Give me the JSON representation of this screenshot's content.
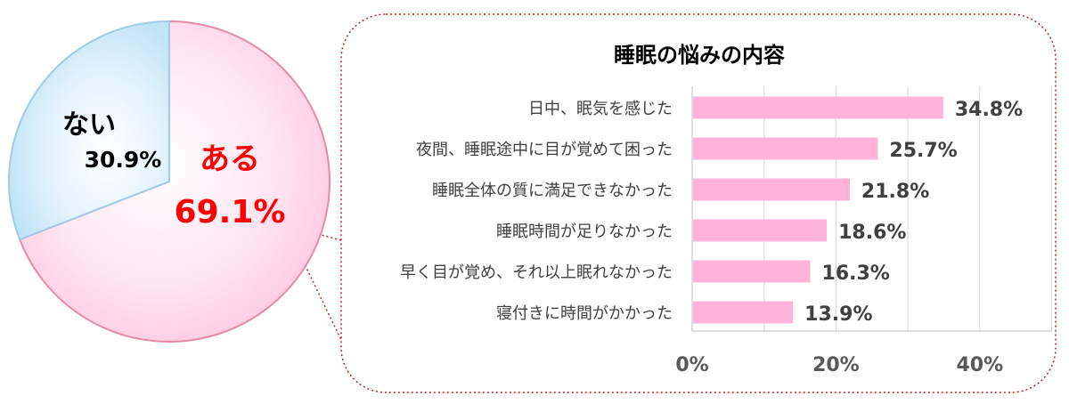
{
  "chart_data": [
    {
      "type": "pie",
      "slices": [
        {
          "label": "ある",
          "value": 69.1,
          "value_label": "69.1%",
          "color": "#ff6699",
          "label_color": "#ff0000"
        },
        {
          "label": "ない",
          "value": 30.9,
          "value_label": "30.9%",
          "color": "#99ccee",
          "label_color": "#000000"
        }
      ]
    },
    {
      "type": "bar",
      "orientation": "horizontal",
      "title": "睡眠の悩みの内容",
      "categories": [
        "日中、眠気を感じた",
        "夜間、睡眠途中に目が覚めて困った",
        "睡眠全体の質に満足できなかった",
        "睡眠時間が足りなかった",
        "早く目が覚め、それ以上眠れなかった",
        "寝付きに時間がかかった"
      ],
      "values": [
        34.8,
        25.7,
        21.8,
        18.6,
        16.3,
        13.9
      ],
      "value_labels": [
        "34.8%",
        "25.7%",
        "21.8%",
        "18.6%",
        "16.3%",
        "13.9%"
      ],
      "bar_color": "#ffb3d9",
      "xlim": [
        0,
        50
      ],
      "xticks": [
        {
          "value": 0,
          "label": "0%"
        },
        {
          "value": 20,
          "label": "20%"
        },
        {
          "value": 40,
          "label": "40%"
        }
      ],
      "grid": true
    }
  ]
}
